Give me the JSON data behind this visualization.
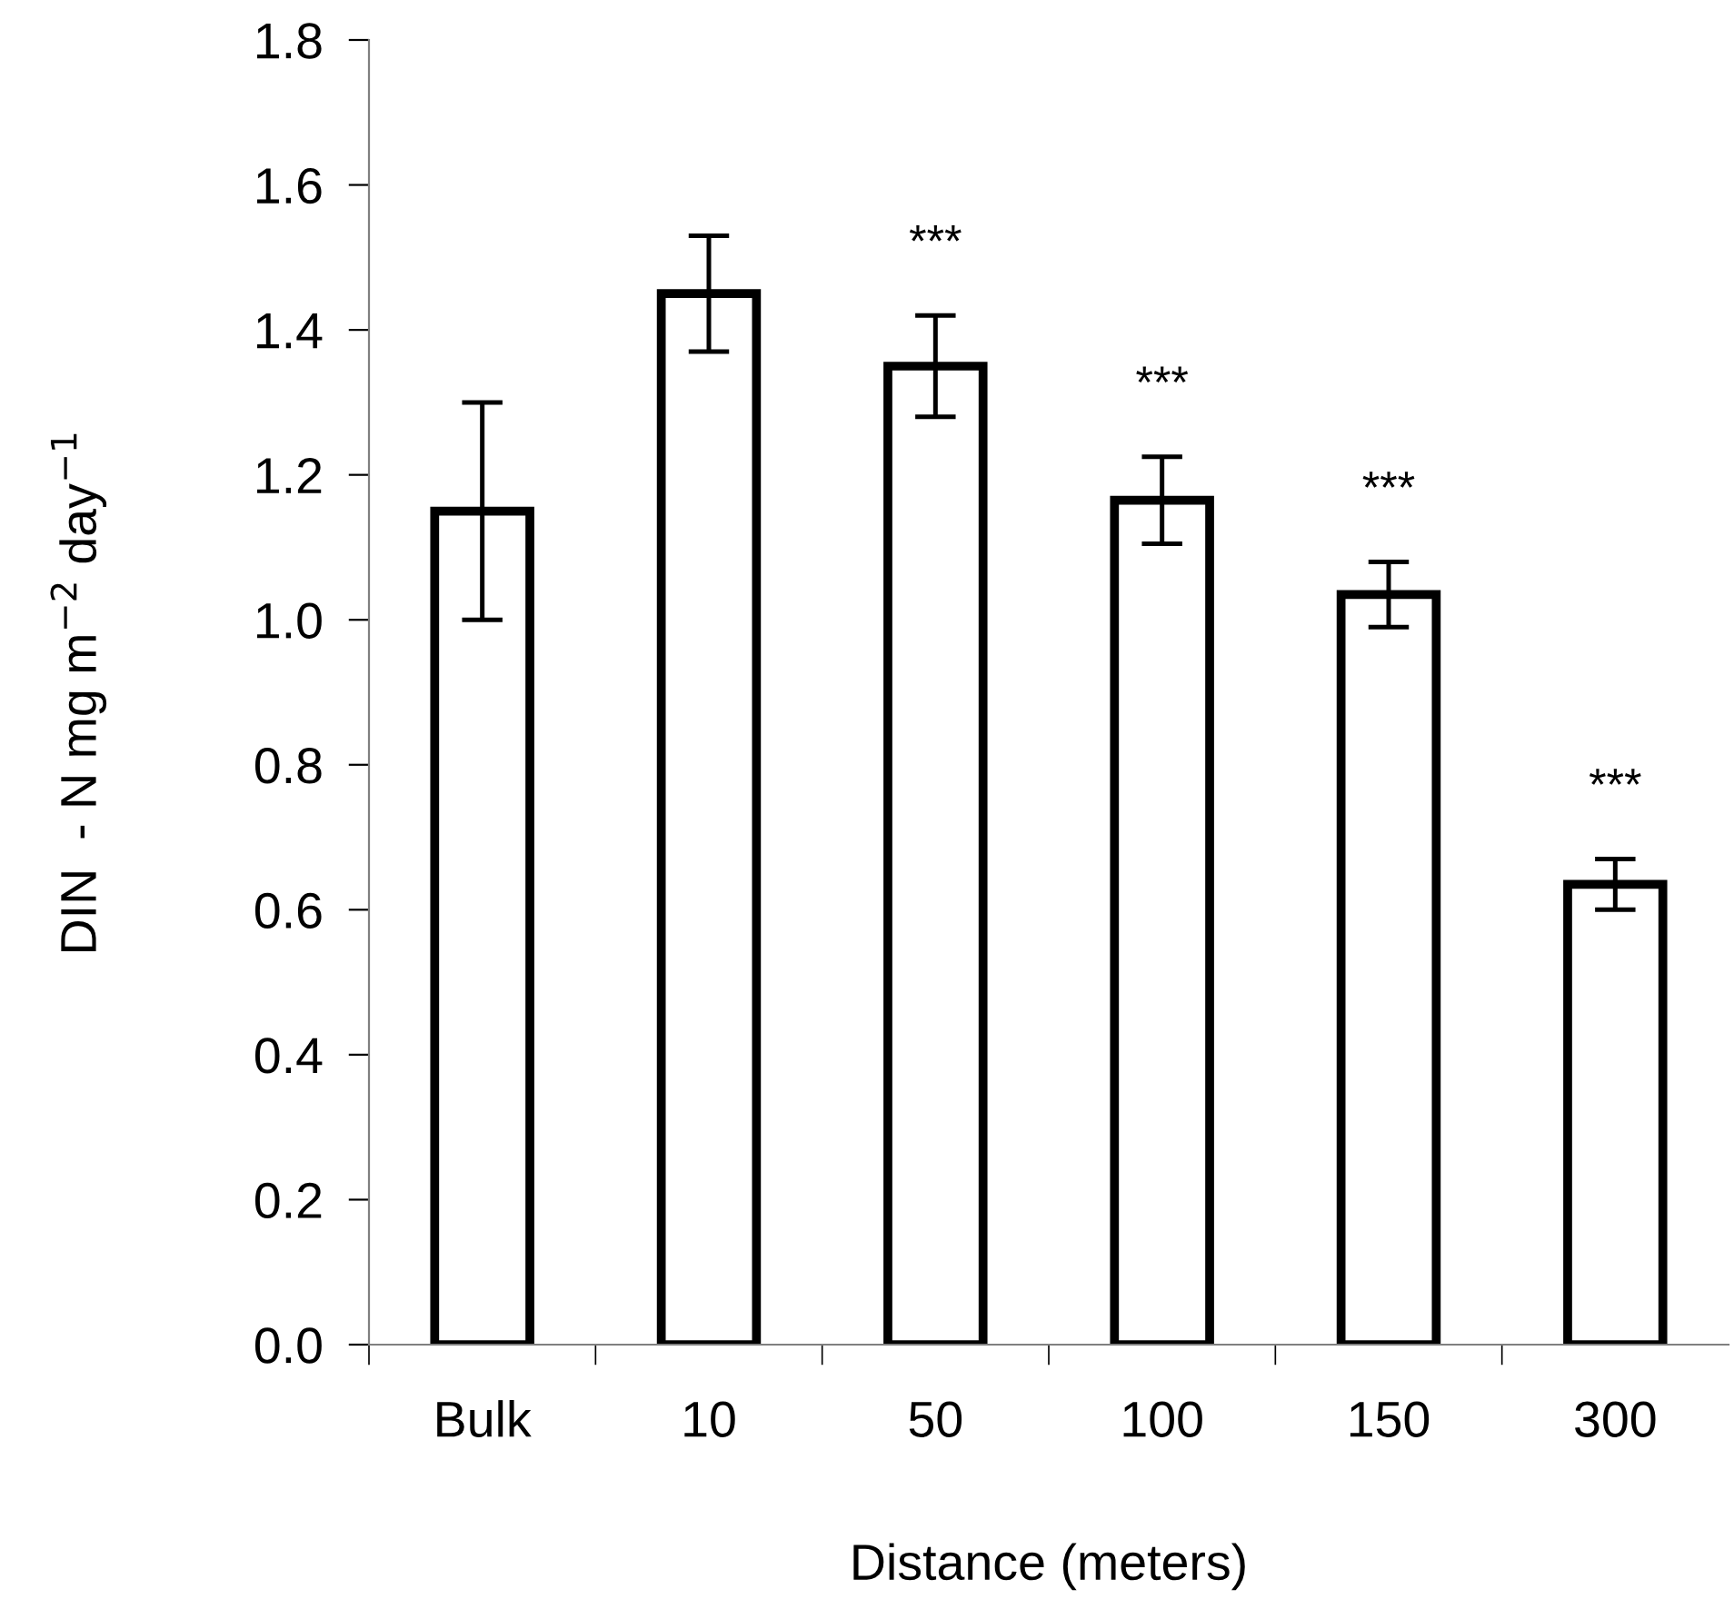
{
  "chart_data": {
    "type": "bar",
    "xlabel": "Distance (meters)",
    "ylabel": "DIN  - N mg m$^{−2}$ day$^{−1}$",
    "categories": [
      "Bulk",
      "10",
      "50",
      "100",
      "150",
      "300"
    ],
    "values": [
      1.15,
      1.45,
      1.35,
      1.165,
      1.035,
      0.635
    ],
    "errors": [
      0.15,
      0.08,
      0.07,
      0.06,
      0.045,
      0.035
    ],
    "color": "#ffffff",
    "ylim": [
      0,
      1.8
    ],
    "yticks": [
      {
        "value": 0,
        "label": "0.0"
      },
      0.2,
      0.4,
      0.6,
      0.8,
      {
        "value": 1.0,
        "label": "1.0"
      },
      1.2,
      1.4,
      1.6,
      1.8
    ],
    "annotations": [
      "***",
      "***",
      "***",
      "***"
    ]
  }
}
